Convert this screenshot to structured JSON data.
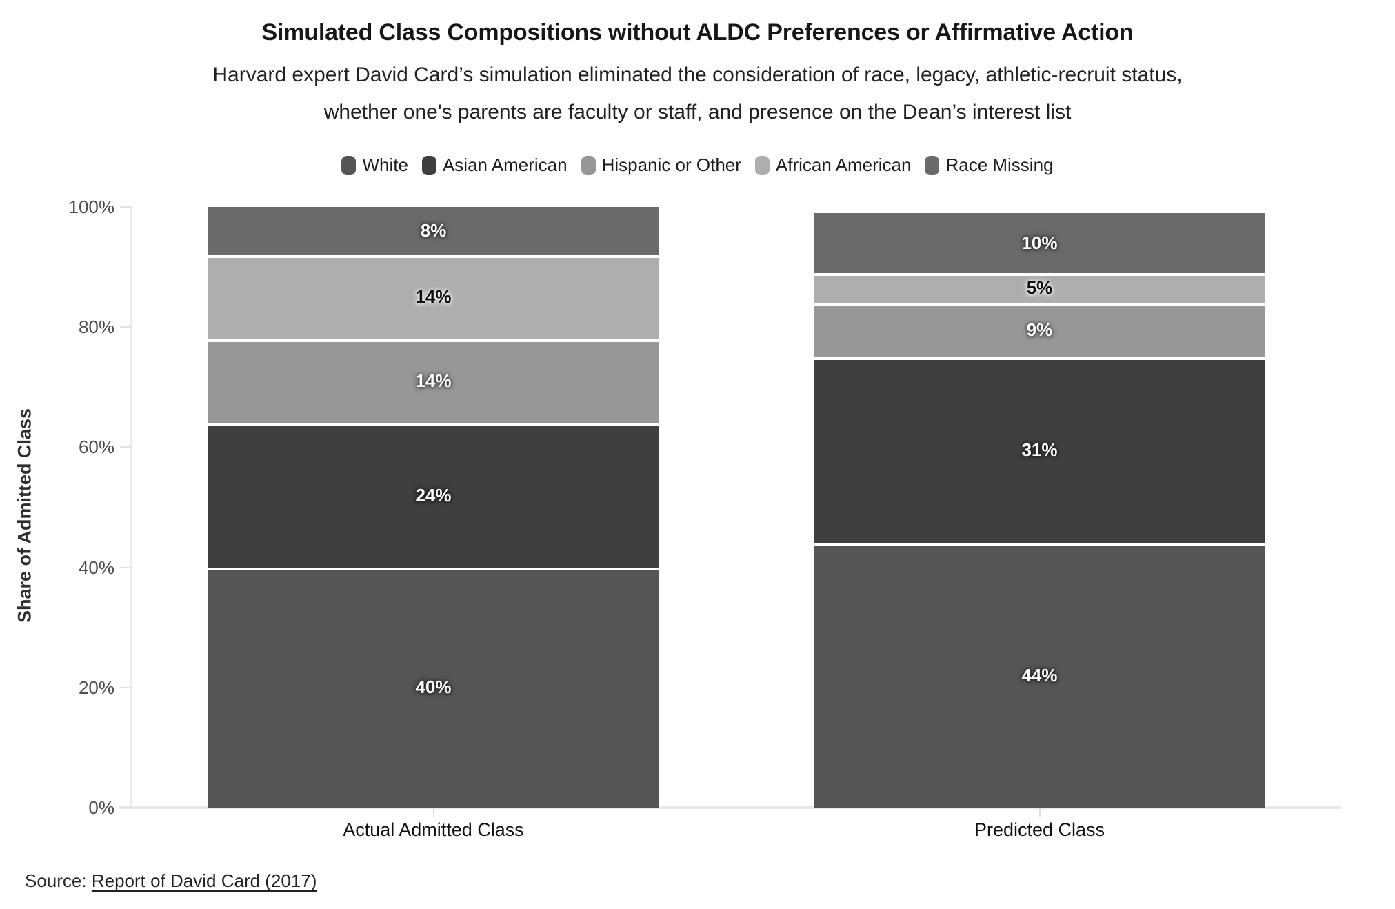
{
  "chart_data": {
    "type": "bar",
    "stacked": true,
    "orientation": "vertical",
    "title": "Simulated Class Compositions without ALDC Preferences or Affirmative Action",
    "subtitle_lines": [
      "Harvard expert David Card’s simulation eliminated the consideration of race, legacy, athletic-recruit status,",
      "whether one's parents are faculty or staff, and presence on the Dean’s interest list"
    ],
    "categories": [
      "Actual Admitted Class",
      "Predicted Class"
    ],
    "series": [
      {
        "name": "White",
        "values": [
          40,
          44
        ],
        "color": "#555555",
        "label_color": "light"
      },
      {
        "name": "Asian American",
        "values": [
          24,
          31
        ],
        "color": "#3f3f3f",
        "label_color": "light"
      },
      {
        "name": "Hispanic or Other",
        "values": [
          14,
          9
        ],
        "color": "#979797",
        "label_color": "light"
      },
      {
        "name": "African American",
        "values": [
          14,
          5
        ],
        "color": "#aeaeae",
        "label_color": "dark"
      },
      {
        "name": "Race Missing",
        "values": [
          8,
          10
        ],
        "color": "#6a6a6a",
        "label_color": "light"
      }
    ],
    "stack_order_bottom_to_top": [
      "White",
      "Asian American",
      "Hispanic or Other",
      "African American",
      "Race Missing"
    ],
    "value_suffix": "%",
    "xlabel": "",
    "ylabel": "Share of Admitted Class",
    "ylim": [
      0,
      100
    ],
    "yticks": [
      {
        "value": 0,
        "label": "0%"
      },
      {
        "value": 20,
        "label": "20%"
      },
      {
        "value": 40,
        "label": "40%"
      },
      {
        "value": 60,
        "label": "60%"
      },
      {
        "value": 80,
        "label": "80%"
      },
      {
        "value": 100,
        "label": "100%"
      }
    ],
    "grid": false,
    "legend_position": "top",
    "axis_color": "#e7e7e7",
    "separator_color": "#ffffff"
  },
  "source": {
    "prefix": "Source:",
    "link_text": "Report of David Card (2017)"
  }
}
